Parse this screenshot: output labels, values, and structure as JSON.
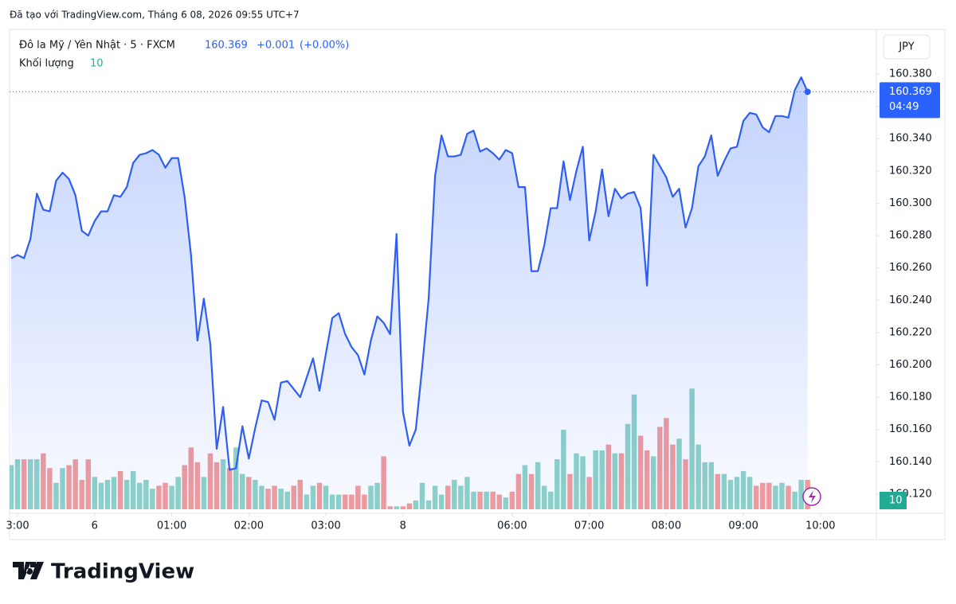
{
  "header": {
    "caption": "Đã tạo với TradingView.com, Tháng 6 08, 2026 09:55 UTC+7"
  },
  "legend": {
    "change": "+0.001",
    "change_pct": "(+0.00%)"
  },
  "currency": "JPY",
  "countdown": "04:49",
  "logo": "TradingView",
  "chart_data": {
    "type": "line",
    "x": [
      0,
      1,
      2,
      3,
      4,
      5,
      6,
      7,
      8,
      9,
      10,
      11,
      12,
      13,
      14,
      15,
      16,
      17,
      18,
      19,
      20,
      21,
      22,
      23,
      24,
      25,
      26,
      27,
      28,
      29,
      30,
      31,
      32,
      33,
      34,
      35,
      36,
      37,
      38,
      39,
      40,
      41,
      42,
      43,
      44,
      45,
      46,
      47,
      48,
      49,
      50,
      51,
      52,
      53,
      54,
      55,
      56,
      57,
      58,
      59,
      60,
      61,
      62,
      63,
      64,
      65,
      66,
      67,
      68,
      69,
      70,
      71,
      72,
      73,
      74,
      75,
      76,
      77,
      78,
      79,
      80,
      81,
      82,
      83,
      84,
      85,
      86,
      87,
      88,
      89,
      90,
      91,
      92,
      93,
      94,
      95,
      96,
      97,
      98,
      99,
      100,
      101,
      102,
      103,
      104,
      105,
      106,
      107,
      108,
      109,
      110,
      111,
      112,
      113,
      114,
      115,
      116,
      117,
      118,
      119,
      120,
      121,
      122,
      123,
      124
    ],
    "series": [
      {
        "name": "Đô la Mỹ / Yên Nhật · 5 · FXCM",
        "type": "line",
        "color": "#2f5ff2",
        "values": [
          160.266,
          160.268,
          160.266,
          160.278,
          160.306,
          160.296,
          160.295,
          160.314,
          160.319,
          160.315,
          160.305,
          160.283,
          160.28,
          160.289,
          160.295,
          160.295,
          160.305,
          160.304,
          160.31,
          160.325,
          160.33,
          160.331,
          160.333,
          160.33,
          160.322,
          160.328,
          160.328,
          160.304,
          160.268,
          160.215,
          160.241,
          160.213,
          160.148,
          160.174,
          160.135,
          160.136,
          160.162,
          160.142,
          160.161,
          160.178,
          160.177,
          160.166,
          160.189,
          160.19,
          160.185,
          160.18,
          160.192,
          160.204,
          160.184,
          160.207,
          160.229,
          160.232,
          160.219,
          160.211,
          160.206,
          160.194,
          160.215,
          160.23,
          160.226,
          160.219,
          160.281,
          160.171,
          160.15,
          160.16,
          160.199,
          160.241,
          160.317,
          160.342,
          160.329,
          160.329,
          160.33,
          160.343,
          160.345,
          160.332,
          160.334,
          160.331,
          160.327,
          160.333,
          160.331,
          160.31,
          160.31,
          160.258,
          160.258,
          160.274,
          160.297,
          160.297,
          160.326,
          160.302,
          160.32,
          160.335,
          160.277,
          160.295,
          160.321,
          160.292,
          160.309,
          160.303,
          160.306,
          160.307,
          160.297,
          160.249,
          160.33,
          160.323,
          160.316,
          160.304,
          160.309,
          160.285,
          160.297,
          160.323,
          160.329,
          160.342,
          160.317,
          160.326,
          160.334,
          160.335,
          160.351,
          160.356,
          160.355,
          160.347,
          160.344,
          160.354,
          160.354,
          160.353,
          160.37,
          160.378,
          160.369
        ]
      },
      {
        "name": "Khối lượng",
        "type": "bar",
        "axis": "y2",
        "color": "#26a69a",
        "values": [
          15,
          17,
          17,
          17,
          17,
          19,
          14,
          9,
          14,
          15,
          17,
          10,
          17,
          11,
          9,
          10,
          11,
          13,
          10,
          13,
          9,
          10,
          7,
          8,
          9,
          8,
          11,
          15,
          21,
          16,
          11,
          19,
          16,
          17,
          14,
          21,
          12,
          11,
          10,
          8,
          7,
          8,
          7,
          6,
          8,
          10,
          5,
          8,
          9,
          8,
          5,
          5,
          5,
          5,
          8,
          5,
          8,
          9,
          18,
          1,
          1,
          1,
          2,
          3,
          9,
          3,
          8,
          5,
          8,
          10,
          8,
          11,
          6,
          6,
          6,
          6,
          5,
          4,
          6,
          12,
          15,
          12,
          16,
          8,
          6,
          17,
          27,
          12,
          19,
          18,
          11,
          20,
          20,
          22,
          19,
          19,
          29,
          39,
          25,
          20,
          18,
          28,
          31,
          22,
          24,
          17,
          41,
          22,
          16,
          16,
          12,
          12,
          10,
          11,
          13,
          11,
          8,
          9,
          9,
          8,
          9,
          8,
          6,
          10,
          10
        ]
      }
    ],
    "xlim": [
      -0.25,
      134.7
    ],
    "xticks": [
      {
        "value": 1,
        "label": "3:00"
      },
      {
        "value": 13,
        "label": "6"
      },
      {
        "value": 25,
        "label": "01:00"
      },
      {
        "value": 37,
        "label": "02:00"
      },
      {
        "value": 49,
        "label": "03:00"
      },
      {
        "value": 61,
        "label": "8"
      },
      {
        "value": 78,
        "label": "06:00"
      },
      {
        "value": 90,
        "label": "07:00"
      },
      {
        "value": 102,
        "label": "08:00"
      },
      {
        "value": 114,
        "label": "09:00"
      },
      {
        "value": 126,
        "label": "10:00"
      }
    ],
    "ylim": [
      160.1106,
      160.4076
    ],
    "yticks": [
      {
        "value": 160.12,
        "label": "160.120"
      },
      {
        "value": 160.14,
        "label": "160.140"
      },
      {
        "value": 160.16,
        "label": "160.160"
      },
      {
        "value": 160.18,
        "label": "160.180"
      },
      {
        "value": 160.2,
        "label": "160.200"
      },
      {
        "value": 160.22,
        "label": "160.220"
      },
      {
        "value": 160.24,
        "label": "160.240"
      },
      {
        "value": 160.26,
        "label": "160.260"
      },
      {
        "value": 160.28,
        "label": "160.280"
      },
      {
        "value": 160.3,
        "label": "160.300"
      },
      {
        "value": 160.32,
        "label": "160.320"
      },
      {
        "value": 160.34,
        "label": "160.340"
      },
      {
        "value": 160.36,
        "label": "160.360"
      },
      {
        "value": 160.38,
        "label": "160.380"
      }
    ],
    "y2lim": [
      0,
      163
    ],
    "grid": false,
    "up_color": "#8fd3c8",
    "down_color": "#f29c9c",
    "badge_color": "#2962ff",
    "volume_badge_color": "#22ab94"
  }
}
